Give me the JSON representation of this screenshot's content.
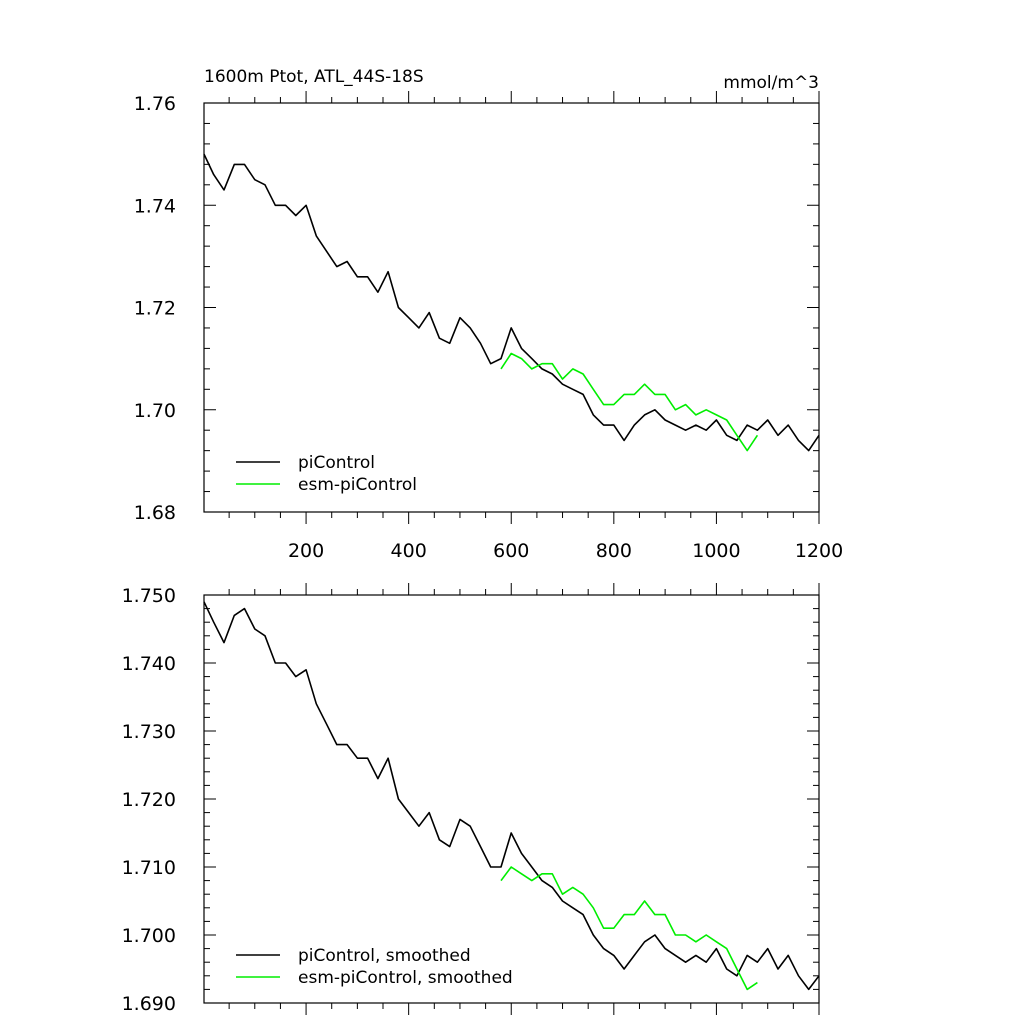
{
  "chart_data": [
    {
      "type": "line",
      "title": "1600m Ptot, ATL_44S-18S",
      "units": "mmol/m^3",
      "xlim": [
        1,
        1200
      ],
      "ylim": [
        1.68,
        1.76
      ],
      "x_ticks": [
        200,
        400,
        600,
        800,
        1000,
        1200
      ],
      "y_ticks": [
        1.68,
        1.7,
        1.72,
        1.74,
        1.76
      ],
      "y_tick_labels": [
        "1.68",
        "1.70",
        "1.72",
        "1.74",
        "1.76"
      ],
      "legend_position": "bottom-left",
      "grid": false,
      "series": [
        {
          "name": "piControl",
          "color": "#000000",
          "x": [
            1,
            20,
            40,
            60,
            80,
            100,
            120,
            140,
            160,
            180,
            200,
            220,
            240,
            260,
            280,
            300,
            320,
            340,
            360,
            380,
            400,
            420,
            440,
            460,
            480,
            500,
            520,
            540,
            560,
            580,
            600,
            620,
            640,
            660,
            680,
            700,
            720,
            740,
            760,
            780,
            800,
            820,
            840,
            860,
            880,
            900,
            920,
            940,
            960,
            980,
            1000,
            1020,
            1040,
            1060,
            1080,
            1100,
            1120,
            1140,
            1160,
            1180,
            1200
          ],
          "values": [
            1.75,
            1.746,
            1.743,
            1.748,
            1.748,
            1.745,
            1.744,
            1.74,
            1.74,
            1.738,
            1.74,
            1.734,
            1.731,
            1.728,
            1.729,
            1.726,
            1.726,
            1.723,
            1.727,
            1.72,
            1.718,
            1.716,
            1.719,
            1.714,
            1.713,
            1.718,
            1.716,
            1.713,
            1.709,
            1.71,
            1.716,
            1.712,
            1.71,
            1.708,
            1.707,
            1.705,
            1.704,
            1.703,
            1.699,
            1.697,
            1.697,
            1.694,
            1.697,
            1.699,
            1.7,
            1.698,
            1.697,
            1.696,
            1.697,
            1.696,
            1.698,
            1.695,
            1.694,
            1.697,
            1.696,
            1.698,
            1.695,
            1.697,
            1.694,
            1.692,
            1.695
          ]
        },
        {
          "name": "esm-piControl",
          "color": "#00ee00",
          "x": [
            580,
            600,
            620,
            640,
            660,
            680,
            700,
            720,
            740,
            760,
            780,
            800,
            820,
            840,
            860,
            880,
            900,
            920,
            940,
            960,
            980,
            1000,
            1020,
            1040,
            1060,
            1080
          ],
          "values": [
            1.708,
            1.711,
            1.71,
            1.708,
            1.709,
            1.709,
            1.706,
            1.708,
            1.707,
            1.704,
            1.701,
            1.701,
            1.703,
            1.703,
            1.705,
            1.703,
            1.703,
            1.7,
            1.701,
            1.699,
            1.7,
            1.699,
            1.698,
            1.695,
            1.692,
            1.695
          ]
        }
      ]
    },
    {
      "type": "line",
      "xlim": [
        1,
        1200
      ],
      "ylim": [
        1.69,
        1.75
      ],
      "x_ticks": [
        200,
        400,
        600,
        800,
        1000,
        1200
      ],
      "y_ticks": [
        1.69,
        1.7,
        1.71,
        1.72,
        1.73,
        1.74,
        1.75
      ],
      "y_tick_labels": [
        "1.690",
        "1.700",
        "1.710",
        "1.720",
        "1.730",
        "1.740",
        "1.750"
      ],
      "legend_position": "bottom-left",
      "grid": false,
      "series": [
        {
          "name": "piControl, smoothed",
          "color": "#000000",
          "x": [
            1,
            20,
            40,
            60,
            80,
            100,
            120,
            140,
            160,
            180,
            200,
            220,
            240,
            260,
            280,
            300,
            320,
            340,
            360,
            380,
            400,
            420,
            440,
            460,
            480,
            500,
            520,
            540,
            560,
            580,
            600,
            620,
            640,
            660,
            680,
            700,
            720,
            740,
            760,
            780,
            800,
            820,
            840,
            860,
            880,
            900,
            920,
            940,
            960,
            980,
            1000,
            1020,
            1040,
            1060,
            1080,
            1100,
            1120,
            1140,
            1160,
            1180,
            1200
          ],
          "values": [
            1.749,
            1.746,
            1.743,
            1.747,
            1.748,
            1.745,
            1.744,
            1.74,
            1.74,
            1.738,
            1.739,
            1.734,
            1.731,
            1.728,
            1.728,
            1.726,
            1.726,
            1.723,
            1.726,
            1.72,
            1.718,
            1.716,
            1.718,
            1.714,
            1.713,
            1.717,
            1.716,
            1.713,
            1.71,
            1.71,
            1.715,
            1.712,
            1.71,
            1.708,
            1.707,
            1.705,
            1.704,
            1.703,
            1.7,
            1.698,
            1.697,
            1.695,
            1.697,
            1.699,
            1.7,
            1.698,
            1.697,
            1.696,
            1.697,
            1.696,
            1.698,
            1.695,
            1.694,
            1.697,
            1.696,
            1.698,
            1.695,
            1.697,
            1.694,
            1.692,
            1.694
          ]
        },
        {
          "name": "esm-piControl, smoothed",
          "color": "#00ee00",
          "x": [
            580,
            600,
            620,
            640,
            660,
            680,
            700,
            720,
            740,
            760,
            780,
            800,
            820,
            840,
            860,
            880,
            900,
            920,
            940,
            960,
            980,
            1000,
            1020,
            1040,
            1060,
            1080
          ],
          "values": [
            1.708,
            1.71,
            1.709,
            1.708,
            1.709,
            1.709,
            1.706,
            1.707,
            1.706,
            1.704,
            1.701,
            1.701,
            1.703,
            1.703,
            1.705,
            1.703,
            1.703,
            1.7,
            1.7,
            1.699,
            1.7,
            1.699,
            1.698,
            1.695,
            1.692,
            1.693
          ]
        }
      ]
    }
  ]
}
